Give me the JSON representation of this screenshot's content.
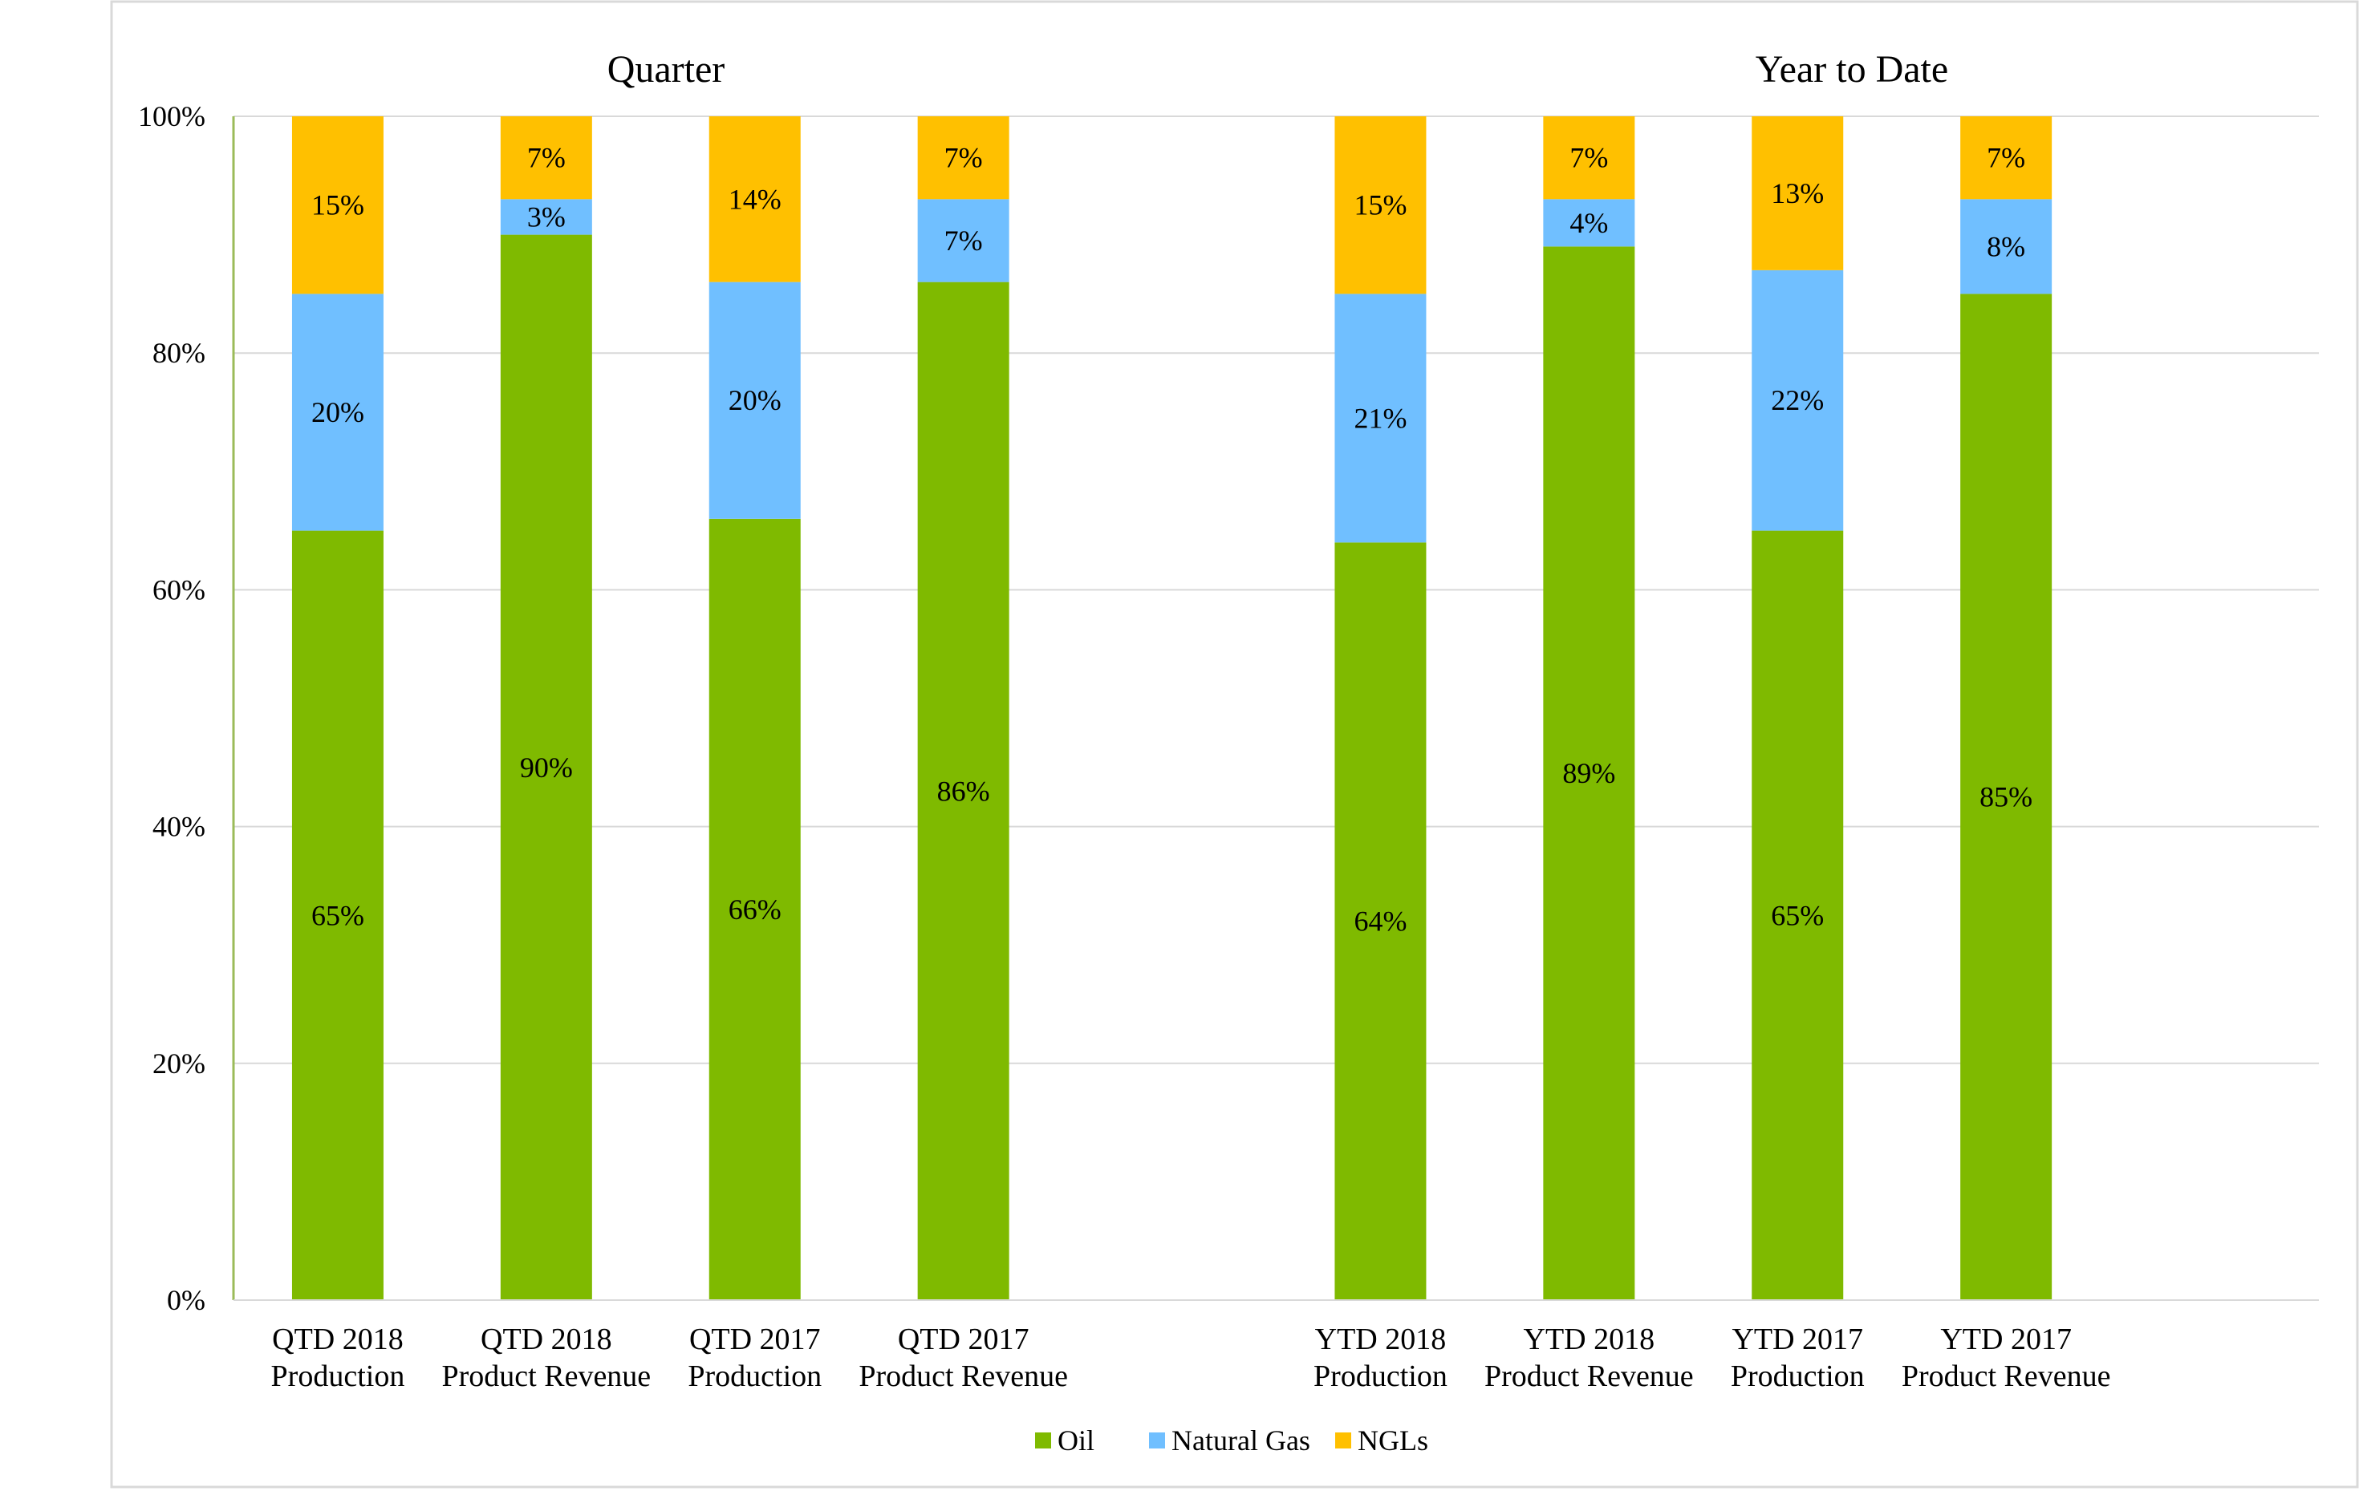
{
  "chart_data": {
    "type": "bar",
    "stacked": true,
    "panels": [
      {
        "title": "Quarter",
        "categories": [
          [
            "QTD 2018",
            "Production"
          ],
          [
            "QTD 2018",
            "Product Revenue"
          ],
          [
            "QTD 2017",
            "Production"
          ],
          [
            "QTD 2017",
            "Product Revenue"
          ]
        ],
        "series": [
          {
            "name": "Oil",
            "values": [
              65,
              90,
              66,
              86
            ]
          },
          {
            "name": "Natural Gas",
            "values": [
              20,
              3,
              20,
              7
            ]
          },
          {
            "name": "NGLs",
            "values": [
              15,
              7,
              14,
              7
            ]
          }
        ]
      },
      {
        "title": "Year to Date",
        "categories": [
          [
            "YTD 2018",
            "Production"
          ],
          [
            "YTD 2018",
            "Product Revenue"
          ],
          [
            "YTD 2017",
            "Production"
          ],
          [
            "YTD 2017",
            "Product Revenue"
          ]
        ],
        "series": [
          {
            "name": "Oil",
            "values": [
              64,
              89,
              65,
              85
            ]
          },
          {
            "name": "Natural Gas",
            "values": [
              21,
              4,
              22,
              8
            ]
          },
          {
            "name": "NGLs",
            "values": [
              15,
              7,
              13,
              7
            ]
          }
        ]
      }
    ],
    "legend": [
      "Oil",
      "Natural Gas",
      "NGLs"
    ],
    "legend_position": "bottom-center",
    "colors": {
      "Oil": "#7fba00",
      "Natural Gas": "#70bfff",
      "NGLs": "#ffc000"
    },
    "ylim": [
      0,
      100
    ],
    "yticks": [
      0,
      20,
      40,
      60,
      80,
      100
    ],
    "ytick_suffix": "%",
    "grid": true
  }
}
